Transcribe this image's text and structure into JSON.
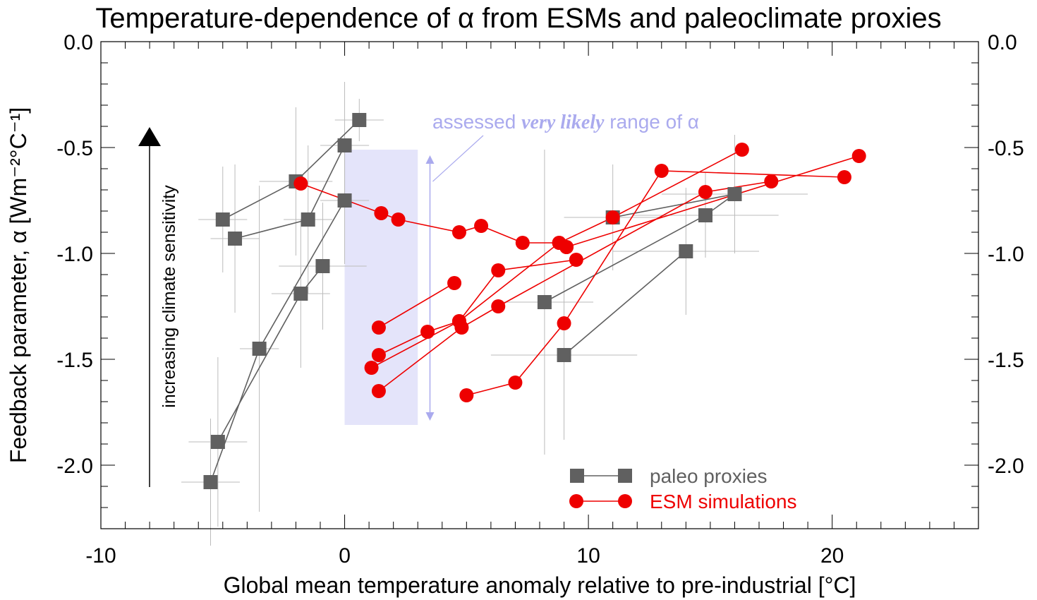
{
  "chart_data": {
    "type": "scatter",
    "title": "Temperature-dependence of α from ESMs and paleoclimate proxies",
    "xlabel": "Global mean temperature anomaly relative to pre-industrial [°C]",
    "ylabel": "Feedback parameter, α [Wm⁻²°C⁻¹]",
    "xlim": [
      -10,
      26
    ],
    "ylim": [
      -2.3,
      0.0
    ],
    "x_ticks": [
      -10,
      0,
      10,
      20
    ],
    "x_tick_labels": [
      "-10",
      "0",
      "10",
      "20"
    ],
    "y_ticks": [
      0.0,
      -0.5,
      -1.0,
      -1.5,
      -2.0
    ],
    "y_tick_labels": [
      "0.0",
      "-0.5",
      "-1.0",
      "-1.5",
      "-2.0"
    ],
    "legend_position": "bottom-right",
    "colors": {
      "paleo": "#606060",
      "esm": "#ee0000",
      "range_fill": "#e4e4fa",
      "range_accent": "#aaaaee",
      "errorbar": "#bbbbbb"
    },
    "annotations": {
      "range_prefix": "assessed ",
      "range_emphasis": "very likely",
      "range_suffix": " range of α",
      "arrow_label": "increasing climate sensitivity"
    },
    "assessed_range": {
      "x": [
        0,
        3
      ],
      "y": [
        -1.81,
        -0.51
      ]
    },
    "series": [
      {
        "name": "paleo proxies",
        "marker": "square",
        "lines": [
          {
            "x": [
              -5.0,
              -2.0,
              0.6
            ],
            "y": [
              -0.84,
              -0.66,
              -0.37
            ]
          },
          {
            "x": [
              -4.5,
              -1.5,
              0.0
            ],
            "y": [
              -0.93,
              -0.84,
              -0.49
            ]
          },
          {
            "x": [
              -5.2,
              -1.8,
              -0.9
            ],
            "y": [
              -1.89,
              -1.19,
              -1.06
            ]
          },
          {
            "x": [
              -5.5,
              -3.5,
              0.0
            ],
            "y": [
              -2.08,
              -1.45,
              -0.75
            ]
          },
          {
            "x": [
              8.2,
              14.8,
              16.0
            ],
            "y": [
              -1.23,
              -0.82,
              -0.72
            ]
          },
          {
            "x": [
              9.0,
              14.0
            ],
            "y": [
              -1.48,
              -0.99
            ]
          },
          {
            "x": [
              11.0,
              16.0
            ],
            "y": [
              -0.83,
              -0.72
            ]
          }
        ],
        "error_bars": [
          {
            "x": -5.0,
            "y": -0.84,
            "xerr": 1.0,
            "yerr": 0.25
          },
          {
            "x": -4.5,
            "y": -0.93,
            "xerr": 1.0,
            "yerr": 0.35
          },
          {
            "x": -2.0,
            "y": -0.66,
            "xerr": 1.5,
            "yerr": 0.35
          },
          {
            "x": -1.5,
            "y": -0.84,
            "xerr": 1.0,
            "yerr": 0.35
          },
          {
            "x": 0.0,
            "y": -0.49,
            "xerr": 1.0,
            "yerr": 0.3
          },
          {
            "x": 0.6,
            "y": -0.37,
            "xerr": 1.0,
            "yerr": 0.1
          },
          {
            "x": -0.9,
            "y": -1.06,
            "xerr": 1.8,
            "yerr": 0.3
          },
          {
            "x": -1.8,
            "y": -1.19,
            "xerr": 1.2,
            "yerr": 0.35
          },
          {
            "x": -3.5,
            "y": -1.45,
            "xerr": 0.8,
            "yerr": 0.77
          },
          {
            "x": -5.2,
            "y": -1.89,
            "xerr": 1.2,
            "yerr": 0.4
          },
          {
            "x": -5.5,
            "y": -2.08,
            "xerr": 1.2,
            "yerr": 0.3
          },
          {
            "x": 0.0,
            "y": -0.75,
            "xerr": 1.0,
            "yerr": 0.3
          },
          {
            "x": 8.2,
            "y": -1.23,
            "xerr": 2.0,
            "yerr": 0.72
          },
          {
            "x": 9.0,
            "y": -1.48,
            "xerr": 3.0,
            "yerr": 0.4
          },
          {
            "x": 11.0,
            "y": -0.83,
            "xerr": 2.0,
            "yerr": 0.25
          },
          {
            "x": 14.0,
            "y": -0.99,
            "xerr": 3.0,
            "yerr": 0.3
          },
          {
            "x": 14.8,
            "y": -0.82,
            "xerr": 3.0,
            "yerr": 0.2
          },
          {
            "x": 16.0,
            "y": -0.72,
            "xerr": 3.0,
            "yerr": 0.28
          }
        ]
      },
      {
        "name": "ESM simulations",
        "marker": "circle",
        "lines": [
          {
            "x": [
              -1.8,
              1.5,
              2.2,
              4.7,
              5.6,
              7.3,
              8.8,
              9.1
            ],
            "y": [
              -0.67,
              -0.81,
              -0.84,
              -0.9,
              -0.87,
              -0.95,
              -0.95,
              -0.97
            ]
          },
          {
            "x": [
              1.4,
              4.5
            ],
            "y": [
              -1.35,
              -1.14
            ]
          },
          {
            "x": [
              1.4,
              3.4,
              4.7,
              8.8,
              11.0,
              16.3
            ],
            "y": [
              -1.48,
              -1.37,
              -1.32,
              -0.95,
              -0.83,
              -0.51
            ]
          },
          {
            "x": [
              1.1,
              4.7,
              6.3,
              9.5
            ],
            "y": [
              -1.54,
              -1.32,
              -1.08,
              -1.03
            ]
          },
          {
            "x": [
              1.4,
              4.8,
              6.3,
              14.8,
              17.5
            ],
            "y": [
              -1.65,
              -1.35,
              -1.25,
              -0.71,
              -0.66
            ]
          },
          {
            "x": [
              5.0,
              7.0,
              9.0,
              13.0,
              20.5
            ],
            "y": [
              -1.67,
              -1.61,
              -1.33,
              -0.61,
              -0.64
            ]
          },
          {
            "x": [
              9.1,
              21.1
            ],
            "y": [
              -0.97,
              -0.54
            ]
          }
        ]
      }
    ]
  }
}
